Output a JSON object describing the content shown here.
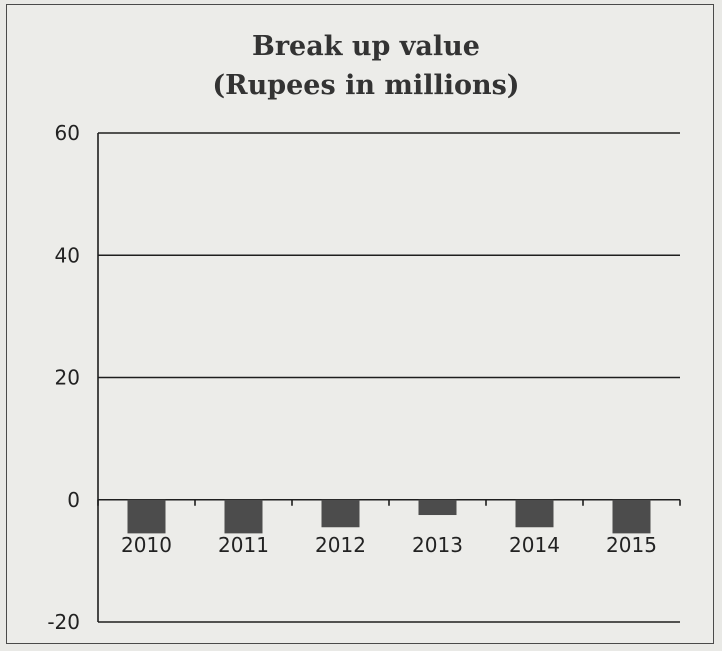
{
  "chart_data": {
    "type": "bar",
    "title": "Break up value",
    "subtitle": "(Rupees in millions)",
    "xlabel": "",
    "ylabel": "",
    "categories": [
      "2010",
      "2011",
      "2012",
      "2013",
      "2014",
      "2015"
    ],
    "values": [
      -5.5,
      -5.5,
      -4.5,
      -2.5,
      -4.5,
      -5.5
    ],
    "ylim": [
      -20,
      60
    ],
    "yticks": [
      "60",
      "40",
      "20",
      "0",
      "-20"
    ],
    "ytick_values": [
      60,
      40,
      20,
      0,
      -20
    ],
    "grid": true,
    "bar_color": "#4c4c4c"
  }
}
